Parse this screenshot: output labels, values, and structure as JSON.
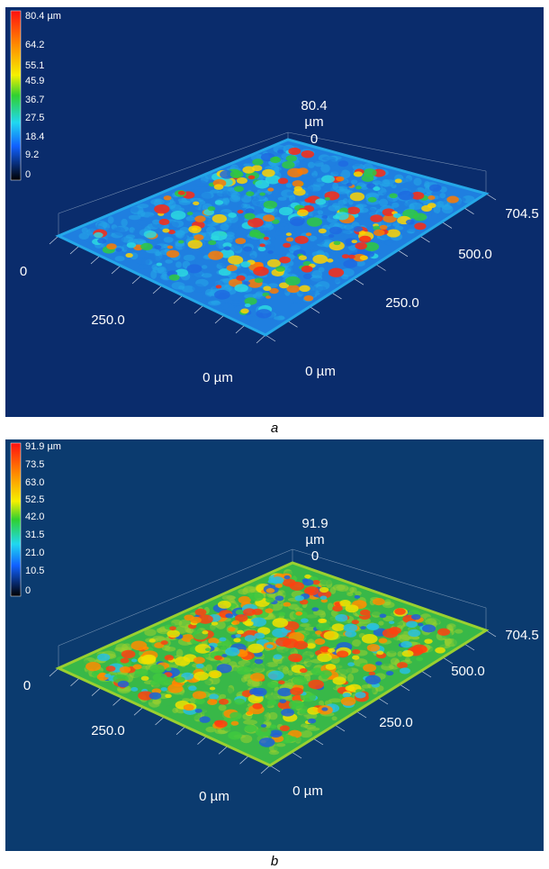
{
  "panels": [
    {
      "colorbar_labels": [
        "80.4 µm",
        "64.2",
        "55.1",
        "45.9",
        "36.7",
        "27.5",
        "18.4",
        "9.2",
        "0"
      ],
      "axis_labels": {
        "z_max": "80.4",
        "z_unit": "µm",
        "z_min": "0",
        "y_end": "704.5",
        "y_mid": "500.0",
        "y_quarter": "250.0",
        "y_origin": "0 µm",
        "x_end": "0",
        "x_mid": "250.0",
        "x_origin": "0 µm"
      },
      "caption": "a"
    },
    {
      "colorbar_labels": [
        "91.9 µm",
        "73.5",
        "63.0",
        "52.5",
        "42.0",
        "31.5",
        "21.0",
        "10.5",
        "0"
      ],
      "axis_labels": {
        "z_max": "91.9",
        "z_unit": "µm",
        "z_min": "0",
        "y_end": "704.5",
        "y_mid": "500.0",
        "y_quarter": "250.0",
        "y_origin": "0 µm",
        "x_end": "0",
        "x_mid": "250.0",
        "x_origin": "0 µm"
      },
      "caption": "b"
    }
  ]
}
